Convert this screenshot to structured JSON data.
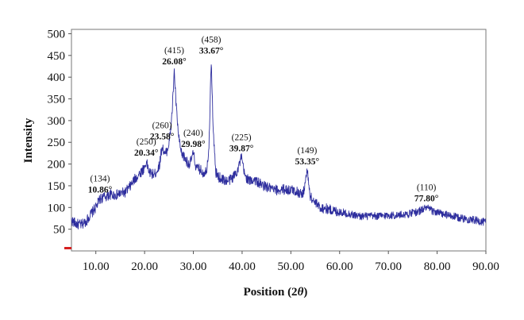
{
  "chart_data": {
    "type": "line",
    "title": "",
    "xlabel": "Position (2θ)",
    "xlabel_prefix": "Position (2",
    "xlabel_symbol": "θ",
    "xlabel_suffix": ")",
    "ylabel": "Intensity",
    "xlim": [
      5,
      90
    ],
    "ylim": [
      0,
      510
    ],
    "x_ticks": [
      {
        "value": 10,
        "label": "10.00"
      },
      {
        "value": 20,
        "label": "20.00"
      },
      {
        "value": 30,
        "label": "30.00"
      },
      {
        "value": 40,
        "label": "40.00"
      },
      {
        "value": 50,
        "label": "50.00"
      },
      {
        "value": 60,
        "label": "60.00"
      },
      {
        "value": 70,
        "label": "70.00"
      },
      {
        "value": 80,
        "label": "80.00"
      },
      {
        "value": 90,
        "label": "90.00"
      }
    ],
    "y_ticks": [
      {
        "value": 50,
        "label": "50"
      },
      {
        "value": 100,
        "label": "100"
      },
      {
        "value": 150,
        "label": "150"
      },
      {
        "value": 200,
        "label": "200"
      },
      {
        "value": 250,
        "label": "250"
      },
      {
        "value": 300,
        "label": "300"
      },
      {
        "value": 350,
        "label": "350"
      },
      {
        "value": 400,
        "label": "400"
      },
      {
        "value": 450,
        "label": "450"
      },
      {
        "value": 500,
        "label": "500"
      }
    ],
    "grid": false,
    "line_color": "#2e2e9e",
    "series": [
      {
        "x": [
          5,
          6,
          7,
          8,
          9,
          10,
          10.86,
          12,
          13,
          14,
          15,
          16,
          17,
          18,
          19,
          20,
          20.34,
          21,
          22,
          23,
          23.58,
          24.2,
          24.8,
          25.3,
          25.7,
          26.08,
          26.5,
          27,
          27.5,
          28,
          28.7,
          29.3,
          29.98,
          30.6,
          31.3,
          32,
          32.7,
          33.2,
          33.67,
          34.1,
          34.6,
          35.2,
          36,
          37,
          38,
          39,
          39.87,
          40.5,
          41.5,
          42.5,
          43.5,
          44.5,
          45.5,
          46.5,
          47.5,
          48.5,
          49.5,
          50.5,
          51.5,
          52.5,
          53.35,
          54,
          55,
          56,
          57,
          58,
          59,
          60,
          62,
          64,
          66,
          68,
          70,
          72,
          74,
          76,
          77.8,
          79,
          81,
          83,
          85,
          87,
          89,
          90
        ],
        "y": [
          70,
          62,
          60,
          68,
          85,
          100,
          120,
          125,
          130,
          128,
          132,
          135,
          148,
          165,
          178,
          192,
          205,
          180,
          175,
          195,
          242,
          220,
          238,
          270,
          330,
          415,
          330,
          260,
          225,
          218,
          205,
          200,
          225,
          190,
          188,
          180,
          185,
          240,
          440,
          270,
          180,
          170,
          165,
          160,
          168,
          185,
          215,
          175,
          160,
          165,
          155,
          150,
          145,
          140,
          140,
          142,
          140,
          140,
          135,
          130,
          185,
          125,
          110,
          100,
          98,
          95,
          92,
          90,
          85,
          80,
          80,
          80,
          82,
          82,
          85,
          90,
          100,
          92,
          85,
          80,
          75,
          72,
          68,
          65
        ]
      }
    ],
    "annotations": [
      {
        "hkl": "(134)",
        "angle": "10.86°",
        "x": 10.86,
        "y": 120
      },
      {
        "hkl": "(250)",
        "angle": "20.34°",
        "x": 20.34,
        "y": 205
      },
      {
        "hkl": "(260)",
        "angle": "23.58°",
        "x": 23.58,
        "y": 242
      },
      {
        "hkl": "(415)",
        "angle": "26.08°",
        "x": 26.08,
        "y": 415
      },
      {
        "hkl": "(240)",
        "angle": "29.98°",
        "x": 29.98,
        "y": 225
      },
      {
        "hkl": "(458)",
        "angle": "33.67°",
        "x": 33.67,
        "y": 440
      },
      {
        "hkl": "(225)",
        "angle": "39.87°",
        "x": 39.87,
        "y": 215
      },
      {
        "hkl": "(149)",
        "angle": "53.35°",
        "x": 53.35,
        "y": 185
      },
      {
        "hkl": "(110)",
        "angle": "77.80°",
        "x": 77.8,
        "y": 100
      }
    ]
  }
}
